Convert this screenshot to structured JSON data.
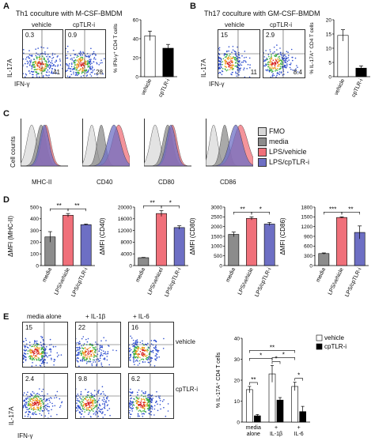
{
  "panelA": {
    "letter": "A",
    "title": "Th1 coculture with M-CSF-BMDM",
    "col_labels": [
      "vehicle",
      "cpTLR-i"
    ],
    "y_label": "IL-17A",
    "x_label": "IFN-γ",
    "quadrants": [
      {
        "ul": "0.3",
        "lr": "41"
      },
      {
        "ul": "0.9",
        "lr": "28"
      }
    ],
    "bar_ylabel": "% IFN-γ⁺ CD4 T cells",
    "bar_categories": [
      "vehicle",
      "cpTLR-i"
    ],
    "sig": "*"
  },
  "panelB": {
    "letter": "B",
    "title": "Th17 coculture with GM-CSF-BMDM",
    "col_labels": [
      "vehicle",
      "cpTLR-i"
    ],
    "y_label": "IL-17A",
    "x_label": "IFN-γ",
    "quadrants": [
      {
        "ul": "15",
        "lr": "11"
      },
      {
        "ul": "2.9",
        "lr": "8.4"
      }
    ],
    "bar_ylabel": "% IL-17A⁺ CD4 T cells",
    "bar_categories": [
      "vehicle",
      "cpTLR-i"
    ],
    "sig": "**"
  },
  "panelC": {
    "letter": "C",
    "y_label": "Cell counts",
    "markers": [
      "MHC-II",
      "CD40",
      "CD80",
      "CD86"
    ],
    "legend": [
      {
        "name": "FMO",
        "color": "#d9d9d9"
      },
      {
        "name": "media",
        "color": "#8c8c8c"
      },
      {
        "name": "LPS/vehicle",
        "color": "#f0707a"
      },
      {
        "name": "LPS/cpTLR-i",
        "color": "#6d6fc4"
      }
    ]
  },
  "panelD": {
    "letter": "D",
    "colors": [
      "#8c8c8c",
      "#f0707a",
      "#6d6fc4"
    ]
  },
  "panelE": {
    "letter": "E",
    "col_labels": [
      "media alone",
      "+ IL-1β",
      "+ IL-6"
    ],
    "row_labels": [
      "vehicle",
      "cpTLR-i"
    ],
    "y_label": "IL-17A",
    "x_label": "IFN-γ",
    "quadrants": [
      [
        "15",
        "22",
        "16"
      ],
      [
        "2.4",
        "9.8",
        "6.2"
      ]
    ],
    "bar_ylabel": "% IL-17A⁺ CD4 T cells",
    "legend": [
      "vehicle",
      "cpTLR-i"
    ],
    "group_labels": [
      "media\nalone",
      "+\nIL-1β",
      "+\nIL-6"
    ]
  },
  "chart_data": [
    {
      "id": "A-bar",
      "type": "bar",
      "categories": [
        "vehicle",
        "cpTLR-i"
      ],
      "values": [
        43,
        30
      ],
      "errors": [
        5,
        4
      ],
      "colors": [
        "#ffffff",
        "#000000"
      ],
      "ylabel": "% IFN-γ⁺ CD4 T cells",
      "ylim": [
        0,
        60
      ],
      "yticks": [
        0,
        20,
        40,
        60
      ]
    },
    {
      "id": "B-bar",
      "type": "bar",
      "categories": [
        "vehicle",
        "cpTLR-i"
      ],
      "values": [
        14.5,
        3
      ],
      "errors": [
        2,
        0.8
      ],
      "colors": [
        "#ffffff",
        "#000000"
      ],
      "ylabel": "% IL-17A⁺ CD4 T cells",
      "ylim": [
        0,
        20
      ],
      "yticks": [
        0,
        5,
        10,
        15,
        20
      ]
    },
    {
      "id": "D-MHCII",
      "type": "bar",
      "categories": [
        "media",
        "LPS/vehicle",
        "LPS/cpTLR-i"
      ],
      "values": [
        245,
        430,
        350
      ],
      "errors": [
        45,
        15,
        5
      ],
      "ylabel": "ΔMFI (MHC-II)",
      "ylim": [
        0,
        500
      ],
      "yticks": [
        0,
        100,
        200,
        300,
        400,
        500
      ],
      "sig": [
        "**",
        "**"
      ]
    },
    {
      "id": "D-CD40",
      "type": "bar",
      "categories": [
        "media",
        "LPS/vehicel",
        "LPS/cpTLR-i"
      ],
      "values": [
        2700,
        17800,
        13000
      ],
      "errors": [
        100,
        1000,
        600
      ],
      "ylabel": "ΔMFI (CD40)",
      "ylim": [
        0,
        20000
      ],
      "yticks": [
        0,
        4000,
        8000,
        12000,
        16000,
        20000
      ],
      "sig": [
        "**",
        "*"
      ]
    },
    {
      "id": "D-CD80",
      "type": "bar",
      "categories": [
        "media",
        "LPS/vehicle",
        "LPS/cpTLR-i"
      ],
      "values": [
        1600,
        2420,
        2130
      ],
      "errors": [
        120,
        80,
        80
      ],
      "ylabel": "ΔMFI (CD80)",
      "ylim": [
        0,
        3000
      ],
      "yticks": [
        0,
        500,
        1000,
        1500,
        2000,
        2500,
        3000
      ],
      "sig": [
        "**",
        "*"
      ]
    },
    {
      "id": "D-CD86",
      "type": "bar",
      "categories": [
        "media",
        "LPS/vehicle",
        "LPS/cpTLR-i"
      ],
      "values": [
        370,
        1480,
        1020
      ],
      "errors": [
        20,
        20,
        200
      ],
      "ylabel": "ΔMFI (CD86)",
      "ylim": [
        0,
        1800
      ],
      "yticks": [
        0,
        300,
        600,
        900,
        1200,
        1500,
        1800
      ],
      "sig": [
        "***",
        "**"
      ]
    },
    {
      "id": "E-bar",
      "type": "bar",
      "groups": [
        "media alone",
        "+ IL-1β",
        "+ IL-6"
      ],
      "series": [
        {
          "name": "vehicle",
          "values": [
            15.5,
            23,
            17
          ],
          "errors": [
            1.5,
            4,
            2
          ]
        },
        {
          "name": "cpTLR-i",
          "values": [
            3,
            10.5,
            5
          ],
          "errors": [
            0.6,
            1.2,
            2.5
          ]
        }
      ],
      "ylabel": "% IL-17A⁺ CD4 T cells",
      "ylim": [
        0,
        40
      ],
      "yticks": [
        0,
        10,
        20,
        30,
        40
      ],
      "sig_within": [
        "**",
        "*",
        "*"
      ],
      "sig_between": [
        "*",
        "*",
        "**"
      ]
    }
  ]
}
